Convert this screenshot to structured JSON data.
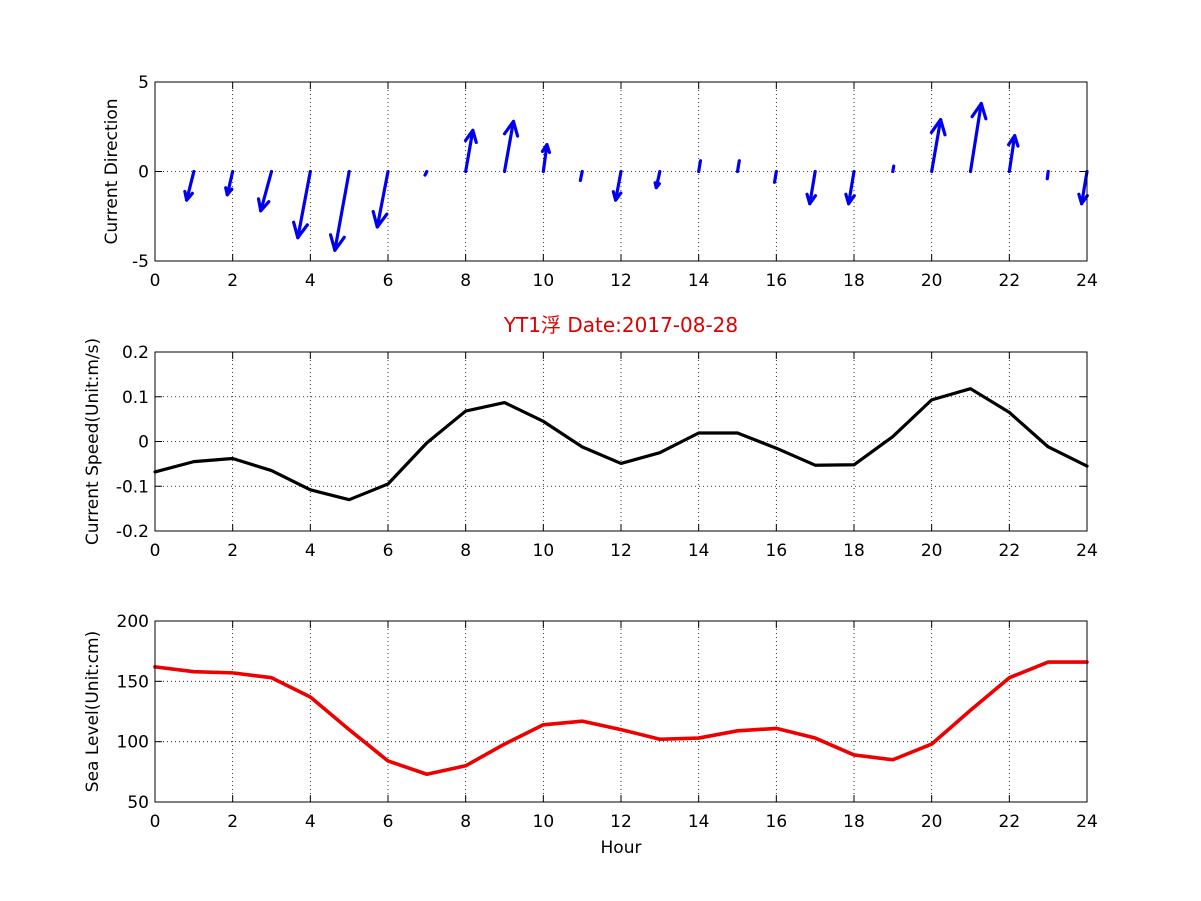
{
  "figure": {
    "title": "YT1浮   Date:2017-08-28",
    "title_color": "#dd0000",
    "background": "#ffffff"
  },
  "chart_data": [
    {
      "type": "quiver",
      "ylabel": "Current Direction",
      "xlabel": "",
      "xlim": [
        0,
        24
      ],
      "ylim": [
        -5,
        5
      ],
      "xticks": [
        0,
        2,
        4,
        6,
        8,
        10,
        12,
        14,
        16,
        18,
        20,
        22,
        24
      ],
      "yticks": [
        -5,
        0,
        5
      ],
      "grid": true,
      "color": "#0000ee",
      "vectors": [
        {
          "x": 1,
          "u": -0.4,
          "v": -1.6
        },
        {
          "x": 2,
          "u": -0.3,
          "v": -1.3
        },
        {
          "x": 3,
          "u": -0.6,
          "v": -2.2
        },
        {
          "x": 4,
          "u": -0.7,
          "v": -3.7
        },
        {
          "x": 5,
          "u": -0.8,
          "v": -4.4
        },
        {
          "x": 6,
          "u": -0.6,
          "v": -3.1
        },
        {
          "x": 7,
          "u": -0.1,
          "v": -0.2
        },
        {
          "x": 8,
          "u": 0.4,
          "v": 2.3
        },
        {
          "x": 9,
          "u": 0.5,
          "v": 2.8
        },
        {
          "x": 10,
          "u": 0.2,
          "v": 1.5
        },
        {
          "x": 11,
          "u": -0.1,
          "v": -0.5
        },
        {
          "x": 12,
          "u": -0.3,
          "v": -1.6
        },
        {
          "x": 13,
          "u": -0.2,
          "v": -0.9
        },
        {
          "x": 14,
          "u": 0.1,
          "v": 0.6
        },
        {
          "x": 15,
          "u": 0.1,
          "v": 0.6
        },
        {
          "x": 16,
          "u": -0.1,
          "v": -0.6
        },
        {
          "x": 17,
          "u": -0.3,
          "v": -1.8
        },
        {
          "x": 18,
          "u": -0.3,
          "v": -1.8
        },
        {
          "x": 19,
          "u": 0.05,
          "v": 0.3
        },
        {
          "x": 20,
          "u": 0.5,
          "v": 2.9
        },
        {
          "x": 21,
          "u": 0.6,
          "v": 3.8
        },
        {
          "x": 22,
          "u": 0.3,
          "v": 2.0
        },
        {
          "x": 23,
          "u": -0.05,
          "v": -0.4
        },
        {
          "x": 24,
          "u": -0.3,
          "v": -1.8
        }
      ]
    },
    {
      "type": "line",
      "title": "YT1浮   Date:2017-08-28",
      "ylabel": "Current Speed(Unit:m/s)",
      "xlabel": "",
      "xlim": [
        0,
        24
      ],
      "ylim": [
        -0.2,
        0.2
      ],
      "xticks": [
        0,
        2,
        4,
        6,
        8,
        10,
        12,
        14,
        16,
        18,
        20,
        22,
        24
      ],
      "yticks": [
        -0.2,
        -0.1,
        0,
        0.1,
        0.2
      ],
      "grid": true,
      "color": "#000000",
      "x": [
        0,
        1,
        2,
        3,
        4,
        5,
        6,
        7,
        8,
        9,
        10,
        11,
        12,
        13,
        14,
        15,
        16,
        17,
        18,
        19,
        20,
        21,
        22,
        23,
        24
      ],
      "y": [
        -0.068,
        -0.045,
        -0.038,
        -0.065,
        -0.108,
        -0.13,
        -0.095,
        -0.003,
        0.068,
        0.087,
        0.045,
        -0.012,
        -0.049,
        -0.025,
        0.019,
        0.019,
        -0.015,
        -0.053,
        -0.052,
        0.011,
        0.093,
        0.118,
        0.065,
        -0.012,
        -0.055
      ]
    },
    {
      "type": "line",
      "ylabel": "Sea Level(Unit:cm)",
      "xlabel": "Hour",
      "xlim": [
        0,
        24
      ],
      "ylim": [
        50,
        200
      ],
      "xticks": [
        0,
        2,
        4,
        6,
        8,
        10,
        12,
        14,
        16,
        18,
        20,
        22,
        24
      ],
      "yticks": [
        50,
        100,
        150,
        200
      ],
      "grid": true,
      "color": "#ee0000",
      "x": [
        0,
        1,
        2,
        3,
        4,
        5,
        6,
        7,
        8,
        9,
        10,
        11,
        12,
        13,
        14,
        15,
        16,
        17,
        18,
        19,
        20,
        21,
        22,
        23,
        24
      ],
      "y": [
        162,
        158,
        157,
        153,
        137,
        110,
        84,
        73,
        80,
        98,
        114,
        117,
        110,
        102,
        103,
        109,
        111,
        103,
        89,
        85,
        98,
        126,
        153,
        166,
        166
      ]
    }
  ]
}
